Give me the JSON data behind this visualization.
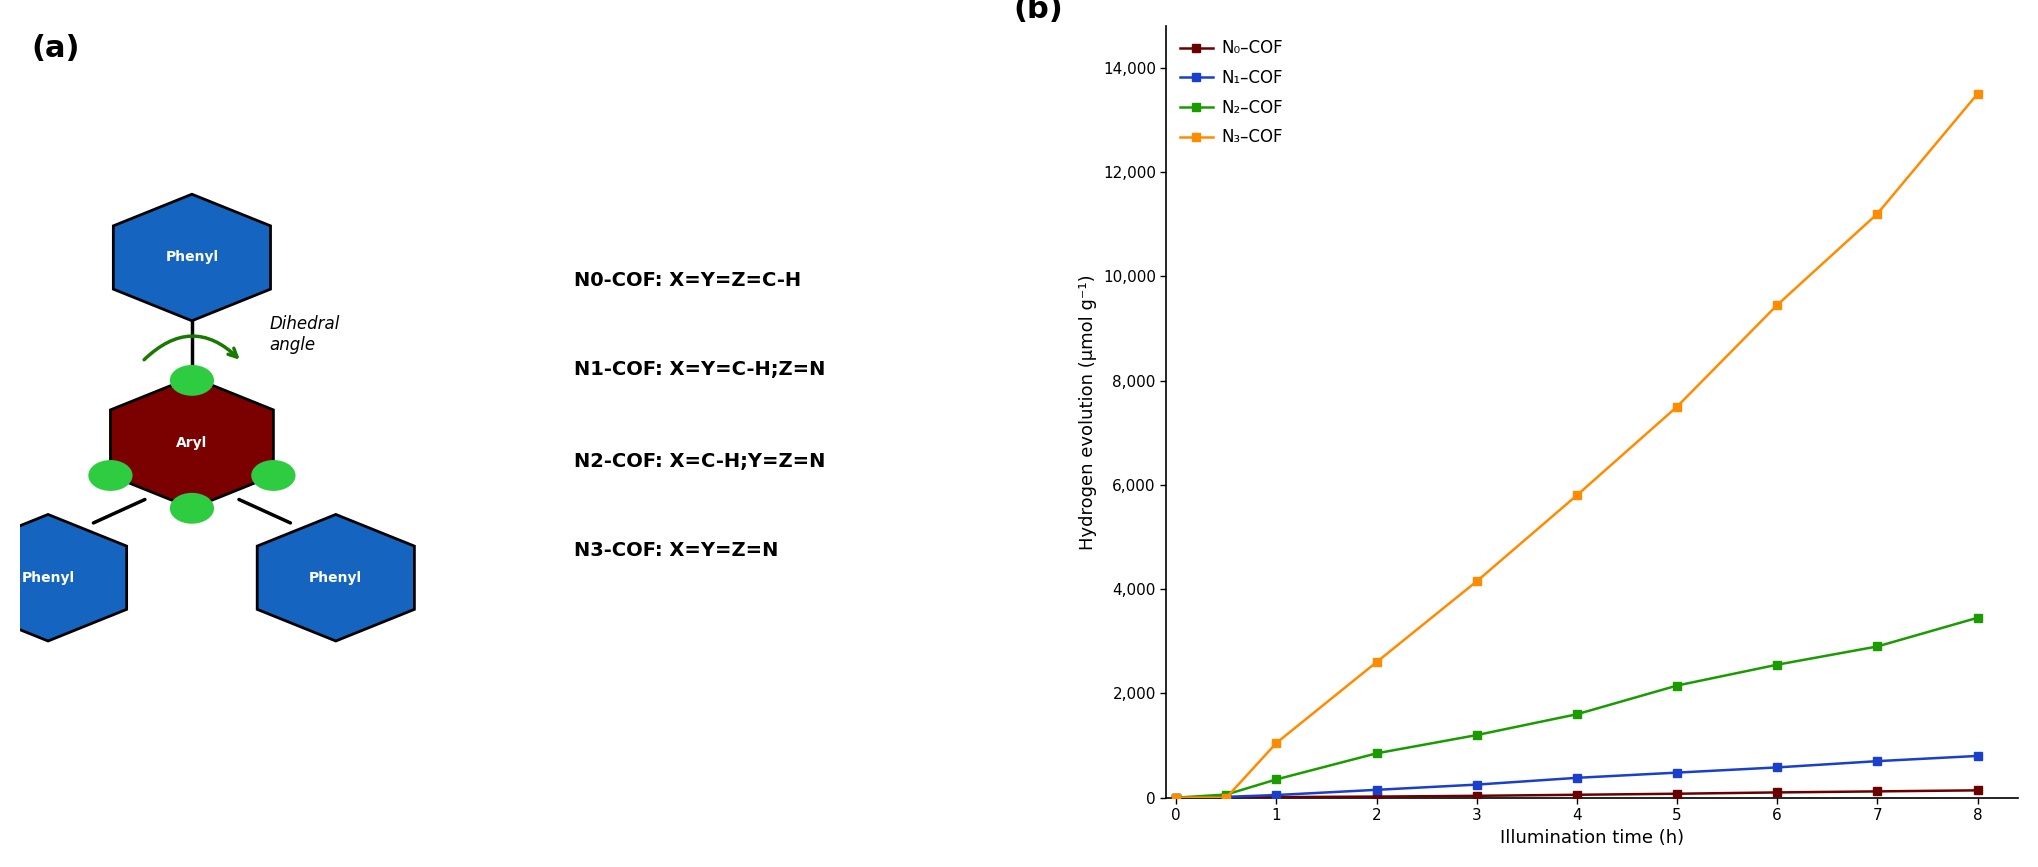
{
  "panel_b": {
    "x": [
      0,
      0.5,
      1,
      2,
      3,
      4,
      5,
      6,
      7,
      8
    ],
    "N0_COF": [
      0,
      0,
      10,
      20,
      35,
      55,
      75,
      100,
      120,
      140
    ],
    "N1_COF": [
      0,
      15,
      50,
      150,
      250,
      380,
      480,
      580,
      700,
      800
    ],
    "N2_COF": [
      0,
      60,
      350,
      850,
      1200,
      1600,
      2150,
      2550,
      2900,
      3450
    ],
    "N3_COF": [
      0,
      0,
      1050,
      2600,
      4150,
      5800,
      7500,
      9450,
      11200,
      13500
    ],
    "N0_color": "#6B0000",
    "N1_color": "#1A3FCC",
    "N2_color": "#1A9B00",
    "N3_color": "#FF8C00",
    "ylabel": "Hydrogen evolution (μmol g⁻¹)",
    "xlabel": "Illumination time (h)",
    "yticks": [
      0,
      2000,
      4000,
      6000,
      8000,
      10000,
      12000,
      14000
    ],
    "ytick_labels": [
      "0",
      "2,000",
      "4,000",
      "6,000",
      "8,000",
      "10,000",
      "12,000",
      "14,000"
    ],
    "xticks": [
      0,
      1,
      2,
      3,
      4,
      5,
      6,
      7,
      8
    ],
    "ylim": [
      0,
      14800
    ],
    "xlim": [
      -0.1,
      8.4
    ],
    "legend_labels": [
      "N₀–COF",
      "N₁–COF",
      "N₂–COF",
      "N₃–COF"
    ],
    "panel_label": "(b)"
  },
  "panel_a": {
    "label": "(a)",
    "phenyl_color": "#1565C0",
    "aryl_color": "#7B0000",
    "dot_color": "#2ECC40",
    "phenyl_text_color": "white",
    "aryl_text_color": "white",
    "dihedral_text": "Dihedral\nangle",
    "cof_labels": [
      "N0-COF: X=Y=Z=C-H",
      "N1-COF: X=Y=C-H;Z=N",
      "N2-COF: X=C-H;Y=Z=N",
      "N3-COF: X=Y=Z=N"
    ]
  }
}
